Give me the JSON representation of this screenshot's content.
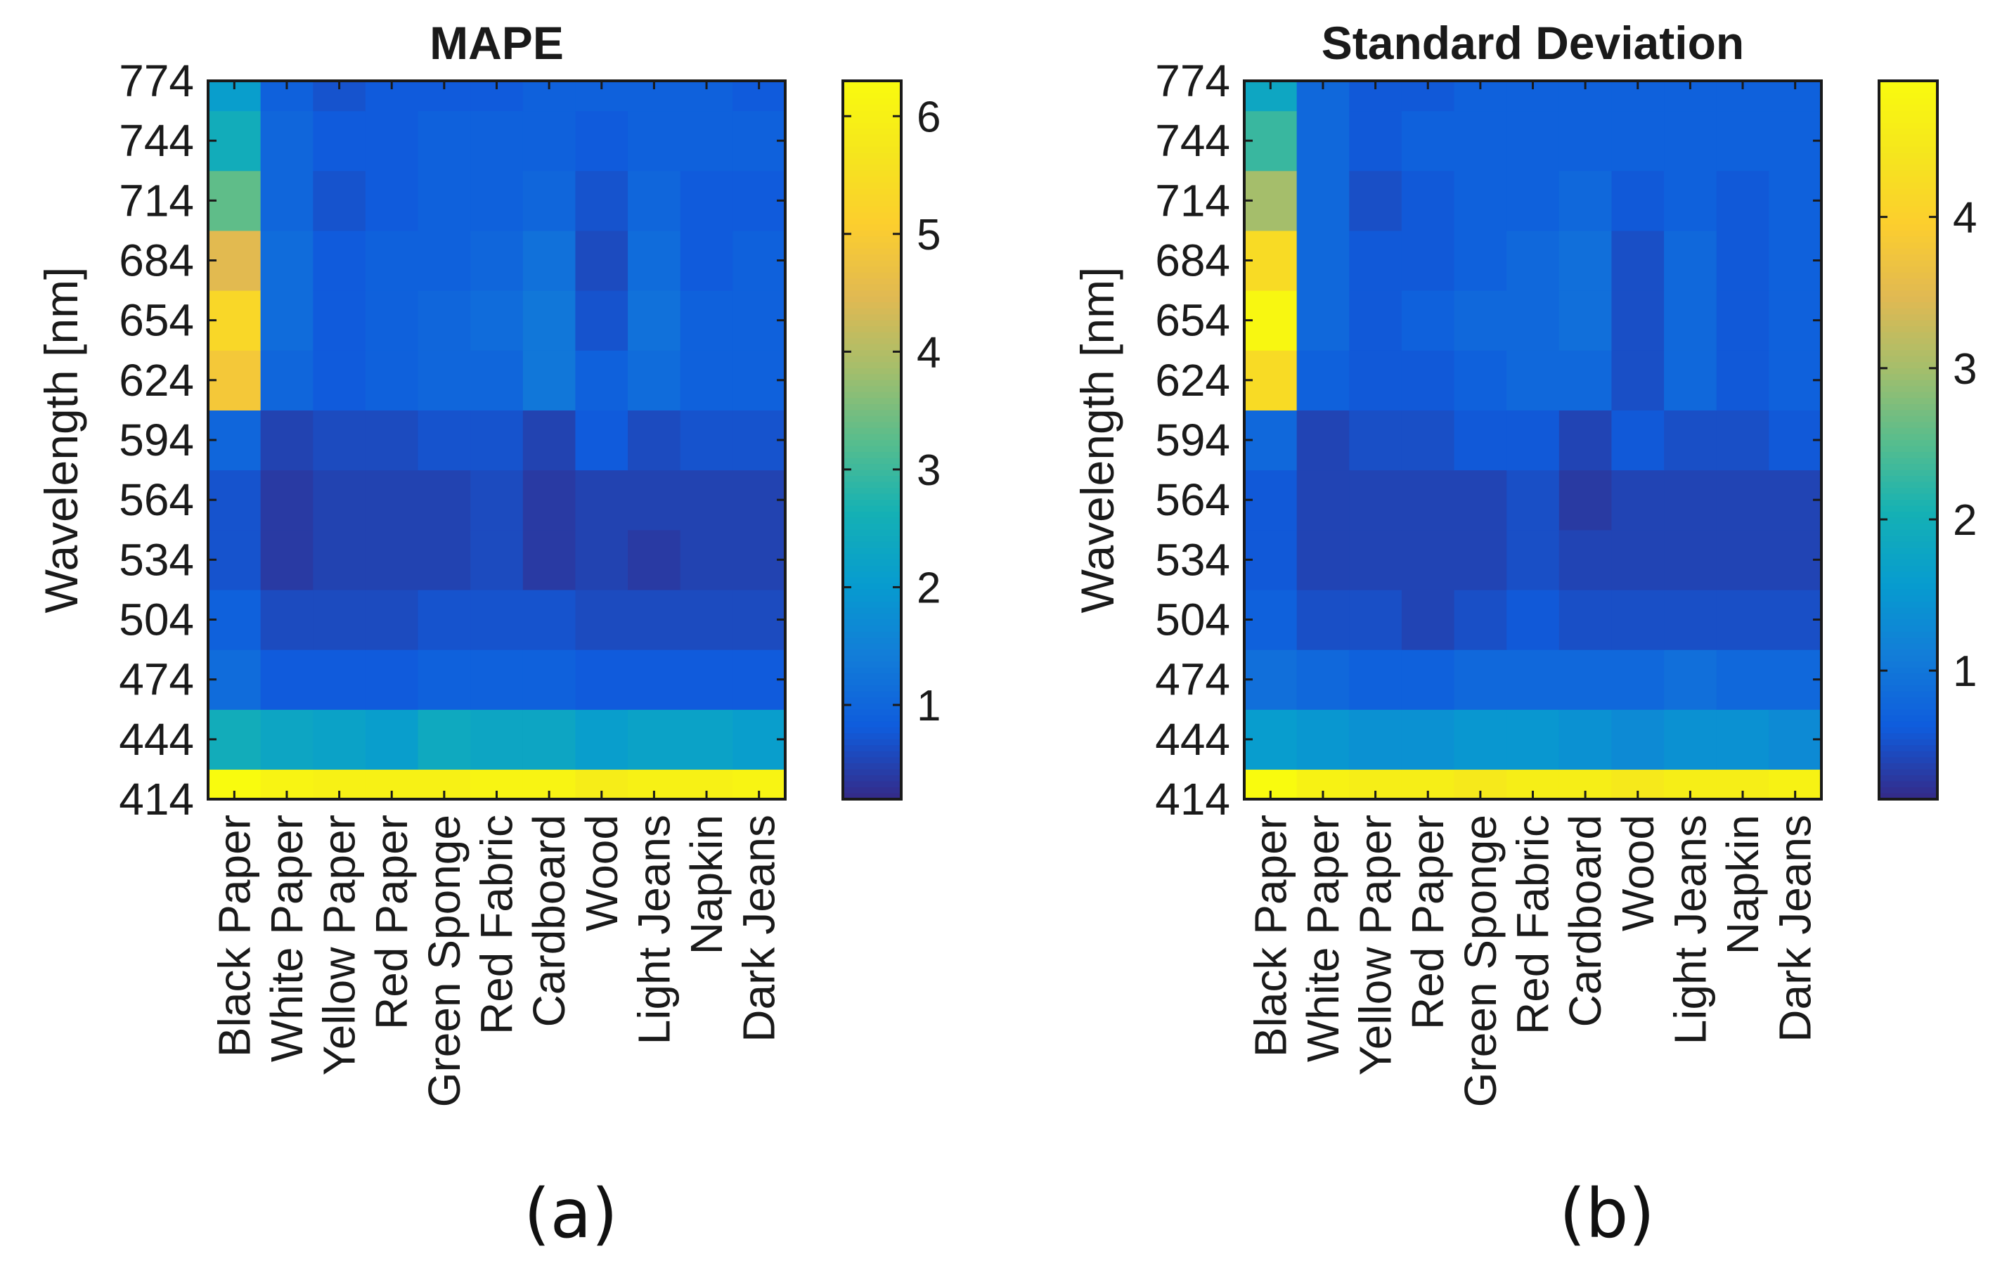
{
  "chart_data": [
    {
      "type": "heatmap",
      "title": "MAPE",
      "caption": "(a)",
      "ylabel": "Wavelength [nm]",
      "xlabel": "",
      "categories": [
        "Black Paper",
        "White Paper",
        "Yellow Paper",
        "Red Paper",
        "Green Sponge",
        "Red Fabric",
        "Cardboard",
        "Wood",
        "Light Jeans",
        "Napkin",
        "Dark Jeans"
      ],
      "y": [
        414,
        444,
        474,
        504,
        534,
        564,
        594,
        624,
        654,
        684,
        714,
        744,
        774
      ],
      "ylim": [
        414,
        774
      ],
      "color_range": [
        0.2,
        6.3
      ],
      "colorbar_ticks": [
        1,
        2,
        3,
        4,
        5,
        6
      ],
      "colormap": "parula",
      "grid": false,
      "values": [
        [
          6.3,
          6.1,
          6.0,
          6.0,
          6.0,
          6.1,
          6.1,
          5.9,
          6.0,
          6.0,
          6.1
        ],
        [
          2.5,
          2.3,
          2.2,
          2.1,
          2.4,
          2.3,
          2.3,
          2.1,
          2.2,
          2.2,
          2.1
        ],
        [
          1.1,
          0.8,
          0.8,
          0.8,
          0.9,
          0.9,
          0.9,
          0.8,
          0.8,
          0.8,
          0.8
        ],
        [
          0.9,
          0.6,
          0.6,
          0.6,
          0.7,
          0.7,
          0.7,
          0.6,
          0.6,
          0.6,
          0.6
        ],
        [
          0.7,
          0.4,
          0.5,
          0.5,
          0.5,
          0.6,
          0.4,
          0.5,
          0.4,
          0.5,
          0.5
        ],
        [
          0.7,
          0.4,
          0.5,
          0.5,
          0.5,
          0.6,
          0.4,
          0.5,
          0.5,
          0.5,
          0.5
        ],
        [
          1.0,
          0.5,
          0.6,
          0.6,
          0.7,
          0.7,
          0.5,
          0.8,
          0.6,
          0.7,
          0.7
        ],
        [
          4.9,
          1.0,
          0.8,
          0.9,
          1.0,
          1.0,
          1.3,
          0.9,
          1.1,
          0.9,
          0.9
        ],
        [
          5.3,
          1.1,
          0.8,
          0.9,
          1.0,
          1.1,
          1.3,
          0.7,
          1.2,
          0.9,
          0.9
        ],
        [
          4.5,
          1.1,
          0.8,
          0.9,
          0.9,
          1.0,
          1.2,
          0.6,
          1.1,
          0.8,
          0.9
        ],
        [
          3.3,
          1.0,
          0.7,
          0.8,
          0.9,
          0.9,
          1.0,
          0.7,
          1.0,
          0.8,
          0.8
        ],
        [
          2.5,
          1.0,
          0.8,
          0.8,
          0.9,
          0.9,
          0.9,
          0.8,
          0.9,
          0.9,
          0.9
        ],
        [
          2.1,
          0.9,
          0.7,
          0.8,
          0.8,
          0.8,
          0.9,
          0.9,
          0.9,
          0.9,
          0.8
        ]
      ]
    },
    {
      "type": "heatmap",
      "title": "Standard Deviation",
      "caption": "(b)",
      "ylabel": "Wavelength [nm]",
      "xlabel": "",
      "categories": [
        "Black Paper",
        "White Paper",
        "Yellow Paper",
        "Red Paper",
        "Green Sponge",
        "Red Fabric",
        "Cardboard",
        "Wood",
        "Light Jeans",
        "Napkin",
        "Dark Jeans"
      ],
      "y": [
        414,
        444,
        474,
        504,
        534,
        564,
        594,
        624,
        654,
        684,
        714,
        744,
        774
      ],
      "ylim": [
        414,
        774
      ],
      "color_range": [
        0.15,
        4.9
      ],
      "colorbar_ticks": [
        1,
        2,
        3,
        4
      ],
      "colormap": "parula",
      "grid": false,
      "values": [
        [
          4.9,
          4.7,
          4.6,
          4.6,
          4.5,
          4.6,
          4.6,
          4.5,
          4.6,
          4.6,
          4.7
        ],
        [
          1.6,
          1.5,
          1.4,
          1.4,
          1.5,
          1.5,
          1.4,
          1.3,
          1.4,
          1.4,
          1.3
        ],
        [
          0.9,
          0.8,
          0.7,
          0.7,
          0.8,
          0.8,
          0.8,
          0.8,
          0.9,
          0.8,
          0.8
        ],
        [
          0.7,
          0.5,
          0.5,
          0.4,
          0.5,
          0.6,
          0.5,
          0.5,
          0.5,
          0.5,
          0.5
        ],
        [
          0.6,
          0.4,
          0.4,
          0.4,
          0.4,
          0.5,
          0.4,
          0.4,
          0.4,
          0.4,
          0.4
        ],
        [
          0.6,
          0.4,
          0.4,
          0.4,
          0.4,
          0.5,
          0.3,
          0.4,
          0.4,
          0.4,
          0.4
        ],
        [
          0.8,
          0.4,
          0.5,
          0.5,
          0.6,
          0.6,
          0.4,
          0.6,
          0.5,
          0.5,
          0.6
        ],
        [
          4.2,
          0.7,
          0.6,
          0.6,
          0.7,
          0.8,
          0.8,
          0.5,
          0.8,
          0.6,
          0.7
        ],
        [
          4.8,
          0.8,
          0.6,
          0.7,
          0.8,
          0.8,
          0.9,
          0.5,
          0.8,
          0.6,
          0.7
        ],
        [
          4.2,
          0.8,
          0.6,
          0.6,
          0.7,
          0.8,
          0.9,
          0.5,
          0.8,
          0.6,
          0.7
        ],
        [
          3.0,
          0.8,
          0.5,
          0.6,
          0.7,
          0.7,
          0.8,
          0.6,
          0.7,
          0.6,
          0.7
        ],
        [
          2.3,
          0.8,
          0.6,
          0.7,
          0.7,
          0.7,
          0.7,
          0.7,
          0.7,
          0.7,
          0.7
        ],
        [
          1.8,
          0.8,
          0.6,
          0.6,
          0.7,
          0.7,
          0.7,
          0.7,
          0.7,
          0.7,
          0.7
        ]
      ]
    }
  ]
}
